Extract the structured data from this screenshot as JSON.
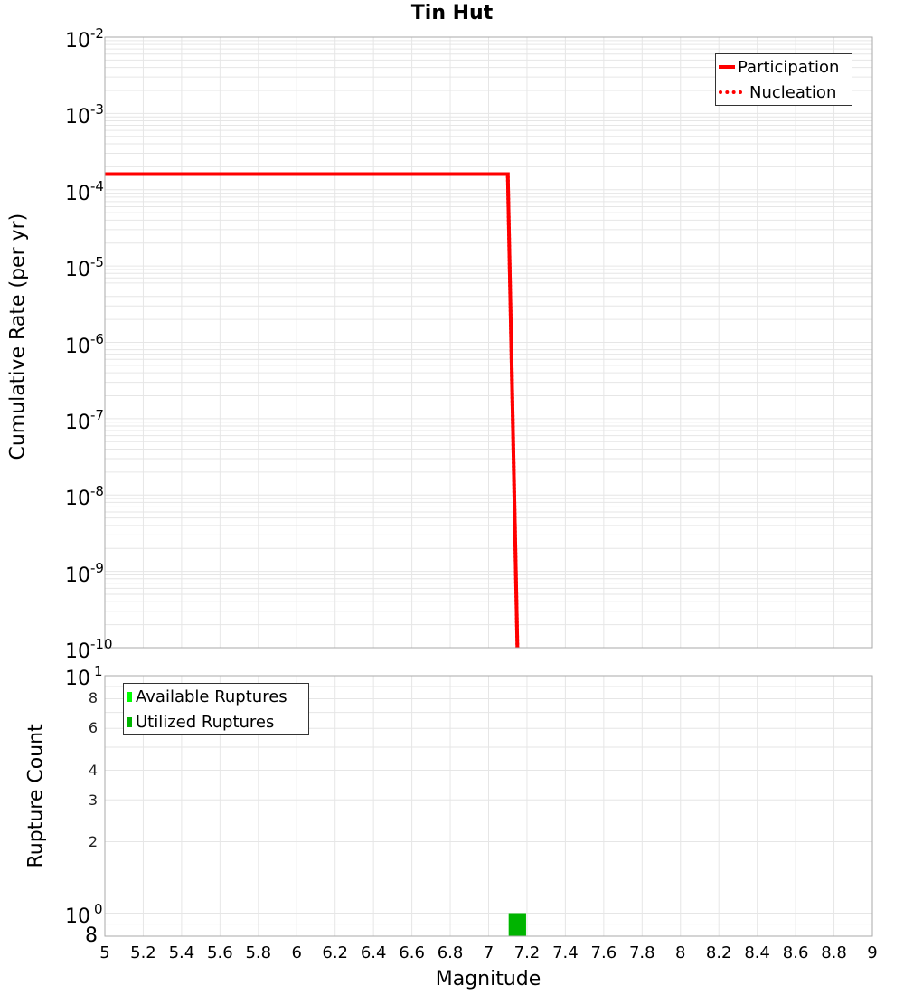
{
  "title": "Tin Hut",
  "chart_data": [
    {
      "type": "line",
      "title": "Tin Hut",
      "xlabel": "Magnitude",
      "ylabel": "Cumulative Rate (per yr)",
      "yscale": "log",
      "xlim": [
        5,
        9
      ],
      "ylim": [
        1e-10,
        0.01
      ],
      "grid": true,
      "legend_position": "upper right",
      "y_tick_labels": [
        "10^-2",
        "10^-3",
        "10^-4",
        "10^-5",
        "10^-6",
        "10^-7",
        "10^-8",
        "10^-9",
        "10^-10"
      ],
      "series": [
        {
          "name": "Participation",
          "style": "solid",
          "color": "#ff0000",
          "x": [
            5.0,
            7.1,
            7.15
          ],
          "y": [
            0.00016,
            0.00016,
            1e-10
          ]
        },
        {
          "name": "Nucleation",
          "style": "dotted",
          "color": "#ff0000",
          "x": [
            5.0,
            7.1,
            7.15
          ],
          "y": [
            0.00016,
            0.00016,
            1e-10
          ]
        }
      ]
    },
    {
      "type": "bar",
      "xlabel": "Magnitude",
      "ylabel": "Rupture Count",
      "yscale": "log",
      "xlim": [
        5,
        9
      ],
      "ylim": [
        0.8,
        10
      ],
      "grid": true,
      "legend_position": "upper left",
      "x_tick_labels": [
        "5",
        "5.2",
        "5.4",
        "5.6",
        "5.8",
        "6",
        "6.2",
        "6.4",
        "6.6",
        "6.8",
        "7",
        "7.2",
        "7.4",
        "7.6",
        "7.8",
        "8",
        "8.2",
        "8.4",
        "8.6",
        "8.8",
        "9"
      ],
      "y_tick_labels": [
        "10^1",
        "8",
        "6",
        "4",
        "3",
        "2",
        "10^0",
        "8"
      ],
      "series": [
        {
          "name": "Available Ruptures",
          "color": "#00ff00",
          "x": [
            7.15
          ],
          "width": 0.09,
          "values": [
            1
          ]
        },
        {
          "name": "Utilized Ruptures",
          "color": "#00b400",
          "x": [
            7.15
          ],
          "width": 0.09,
          "values": [
            1
          ]
        }
      ]
    }
  ],
  "top": {
    "ylabel": "Cumulative Rate (per yr)",
    "yticks": [
      {
        "base": "10",
        "exp": "-2"
      },
      {
        "base": "10",
        "exp": "-3"
      },
      {
        "base": "10",
        "exp": "-4"
      },
      {
        "base": "10",
        "exp": "-5"
      },
      {
        "base": "10",
        "exp": "-6"
      },
      {
        "base": "10",
        "exp": "-7"
      },
      {
        "base": "10",
        "exp": "-8"
      },
      {
        "base": "10",
        "exp": "-9"
      },
      {
        "base": "10",
        "exp": "-10"
      }
    ],
    "legend": [
      "Participation",
      "Nucleation"
    ]
  },
  "bottom": {
    "ylabel": "Rupture Count",
    "ytop": {
      "base": "10",
      "exp": "1"
    },
    "yone": {
      "base": "10",
      "exp": "0"
    },
    "yminor": [
      "8",
      "6",
      "4",
      "3",
      "2"
    ],
    "ybottom": "8",
    "legend": [
      "Available Ruptures",
      "Utilized Ruptures"
    ]
  },
  "xlabel": "Magnitude",
  "xticks": [
    "5",
    "5.2",
    "5.4",
    "5.6",
    "5.8",
    "6",
    "6.2",
    "6.4",
    "6.6",
    "6.8",
    "7",
    "7.2",
    "7.4",
    "7.6",
    "7.8",
    "8",
    "8.2",
    "8.4",
    "8.6",
    "8.8",
    "9"
  ]
}
